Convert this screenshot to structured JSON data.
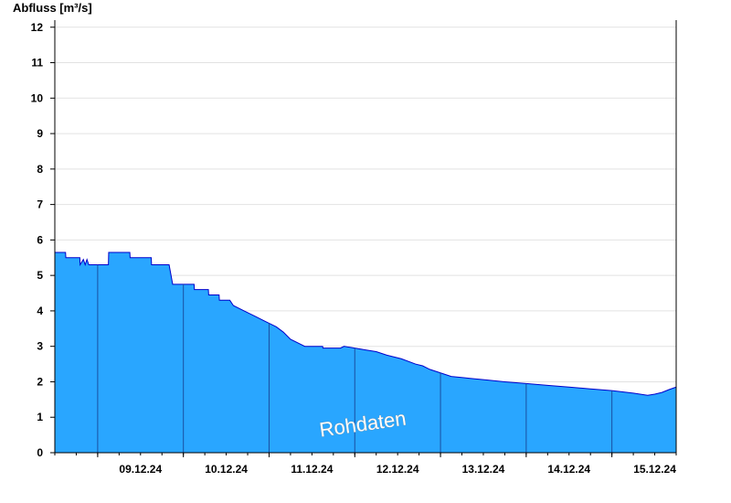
{
  "chart_data": {
    "type": "area",
    "ylabel": "Abfluss [m³/s]",
    "ylim": [
      0,
      12.2
    ],
    "yticks": [
      0,
      1,
      2,
      3,
      4,
      5,
      6,
      7,
      8,
      9,
      10,
      11,
      12
    ],
    "xlim": [
      "2024-12-08T12:00",
      "2024-12-15T18:00"
    ],
    "xtick_labels": [
      "09.12.24",
      "10.12.24",
      "11.12.24",
      "12.12.24",
      "13.12.24",
      "14.12.24",
      "15.12.24"
    ],
    "grid": true,
    "watermark": "Rohdaten",
    "fill_color": "#29a6ff",
    "line_color": "#0000cc",
    "series": [
      {
        "values": [
          [
            "2024-12-08T12:00",
            5.65
          ],
          [
            "2024-12-08T15:00",
            5.65
          ],
          [
            "2024-12-08T15:05",
            5.5
          ],
          [
            "2024-12-08T19:00",
            5.5
          ],
          [
            "2024-12-08T19:05",
            5.3
          ],
          [
            "2024-12-08T20:00",
            5.45
          ],
          [
            "2024-12-08T20:30",
            5.3
          ],
          [
            "2024-12-08T21:00",
            5.45
          ],
          [
            "2024-12-08T21:30",
            5.3
          ],
          [
            "2024-12-09T03:00",
            5.3
          ],
          [
            "2024-12-09T03:05",
            5.65
          ],
          [
            "2024-12-09T09:00",
            5.65
          ],
          [
            "2024-12-09T09:05",
            5.5
          ],
          [
            "2024-12-09T15:00",
            5.5
          ],
          [
            "2024-12-09T15:05",
            5.3
          ],
          [
            "2024-12-09T20:00",
            5.3
          ],
          [
            "2024-12-09T21:00",
            4.75
          ],
          [
            "2024-12-10T03:00",
            4.75
          ],
          [
            "2024-12-10T03:05",
            4.6
          ],
          [
            "2024-12-10T07:00",
            4.6
          ],
          [
            "2024-12-10T07:05",
            4.45
          ],
          [
            "2024-12-10T10:00",
            4.45
          ],
          [
            "2024-12-10T10:05",
            4.3
          ],
          [
            "2024-12-10T13:00",
            4.3
          ],
          [
            "2024-12-10T14:00",
            4.15
          ],
          [
            "2024-12-10T17:00",
            4.0
          ],
          [
            "2024-12-10T20:00",
            3.85
          ],
          [
            "2024-12-10T23:00",
            3.7
          ],
          [
            "2024-12-11T02:00",
            3.55
          ],
          [
            "2024-12-11T04:00",
            3.4
          ],
          [
            "2024-12-11T06:00",
            3.2
          ],
          [
            "2024-12-11T08:00",
            3.1
          ],
          [
            "2024-12-11T10:00",
            3.0
          ],
          [
            "2024-12-11T15:00",
            3.0
          ],
          [
            "2024-12-11T15:05",
            2.95
          ],
          [
            "2024-12-11T20:00",
            2.95
          ],
          [
            "2024-12-11T21:00",
            3.0
          ],
          [
            "2024-12-12T00:00",
            2.95
          ],
          [
            "2024-12-12T03:00",
            2.9
          ],
          [
            "2024-12-12T06:00",
            2.85
          ],
          [
            "2024-12-12T09:00",
            2.75
          ],
          [
            "2024-12-12T13:00",
            2.65
          ],
          [
            "2024-12-12T17:00",
            2.5
          ],
          [
            "2024-12-12T19:00",
            2.45
          ],
          [
            "2024-12-12T21:00",
            2.35
          ],
          [
            "2024-12-13T00:00",
            2.25
          ],
          [
            "2024-12-13T03:00",
            2.15
          ],
          [
            "2024-12-13T08:00",
            2.1
          ],
          [
            "2024-12-13T13:00",
            2.05
          ],
          [
            "2024-12-13T18:00",
            2.0
          ],
          [
            "2024-12-14T00:00",
            1.95
          ],
          [
            "2024-12-14T06:00",
            1.9
          ],
          [
            "2024-12-14T12:00",
            1.85
          ],
          [
            "2024-12-14T18:00",
            1.8
          ],
          [
            "2024-12-15T00:00",
            1.75
          ],
          [
            "2024-12-15T06:00",
            1.68
          ],
          [
            "2024-12-15T10:00",
            1.62
          ],
          [
            "2024-12-15T12:00",
            1.65
          ],
          [
            "2024-12-15T14:00",
            1.7
          ],
          [
            "2024-12-15T16:00",
            1.78
          ],
          [
            "2024-12-15T18:00",
            1.85
          ]
        ]
      }
    ]
  }
}
